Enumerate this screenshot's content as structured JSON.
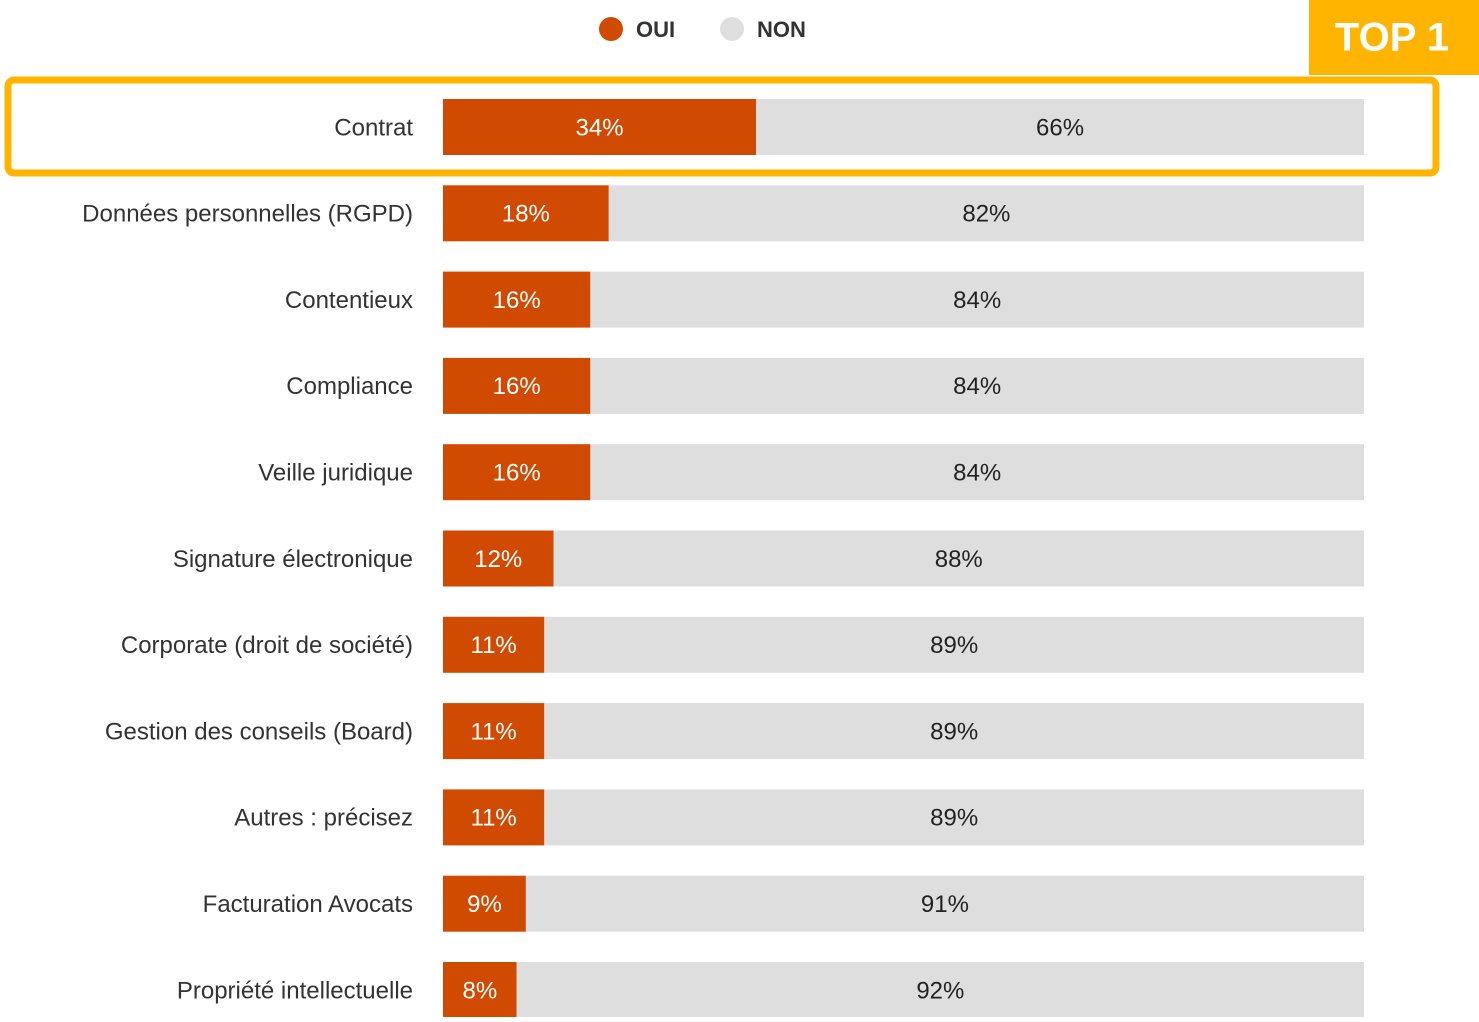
{
  "chart_data": {
    "type": "stacked-bar",
    "orientation": "horizontal",
    "annotation": "TOP 1",
    "categories": [
      "Contrat",
      "Données personnelles (RGPD)",
      "Contentieux",
      "Compliance",
      "Veille juridique",
      "Signature électronique",
      "Corporate (droit de société)",
      "Gestion des conseils (Board)",
      "Autres : précisez",
      "Facturation Avocats",
      "Propriété intellectuelle"
    ],
    "xlim": [
      0,
      100
    ],
    "legend": "top",
    "series": [
      {
        "name": "OUI",
        "color": "#d04a02",
        "values": [
          34,
          18,
          16,
          16,
          16,
          12,
          11,
          11,
          11,
          9,
          8
        ],
        "value_labels": [
          "34%",
          "18%",
          "16%",
          "16%",
          "16%",
          "12%",
          "11%",
          "11%",
          "11%",
          "9%",
          "8%"
        ]
      },
      {
        "name": "NON",
        "color": "#dedede",
        "values": [
          66,
          82,
          84,
          84,
          84,
          88,
          89,
          89,
          89,
          91,
          92
        ],
        "value_labels": [
          "66%",
          "82%",
          "84%",
          "84%",
          "84%",
          "88%",
          "89%",
          "89%",
          "89%",
          "91%",
          "92%"
        ]
      }
    ]
  }
}
